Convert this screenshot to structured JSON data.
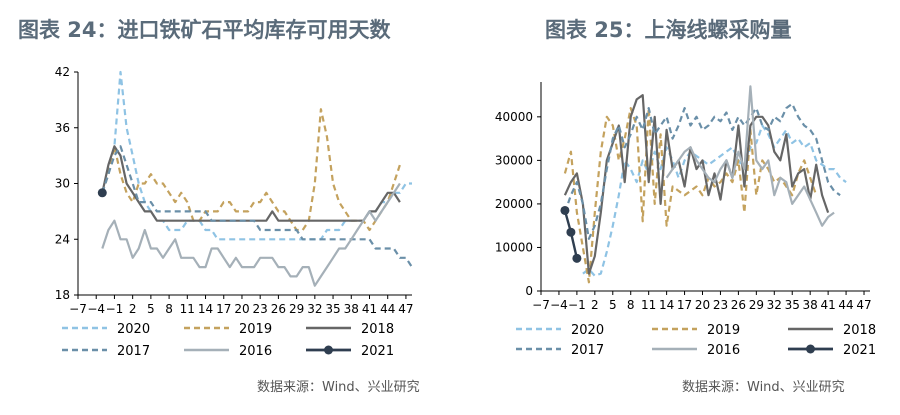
{
  "source_label": "数据来源：Wind、兴业研究",
  "chart_data": [
    {
      "type": "line",
      "title": "图表 24：进口铁矿石平均库存可用天数",
      "xlabel": "",
      "ylabel": "",
      "x_ticks": [
        -7,
        -4,
        -1,
        2,
        5,
        8,
        11,
        14,
        17,
        20,
        23,
        26,
        29,
        32,
        35,
        38,
        41,
        44,
        47
      ],
      "x": [
        -7,
        -6,
        -5,
        -4,
        -3,
        -2,
        -1,
        0,
        1,
        2,
        3,
        4,
        5,
        6,
        7,
        8,
        9,
        10,
        11,
        12,
        13,
        14,
        15,
        16,
        17,
        18,
        19,
        20,
        21,
        22,
        23,
        24,
        25,
        26,
        27,
        28,
        29,
        30,
        31,
        32,
        33,
        34,
        35,
        36,
        37,
        38,
        39,
        40,
        41,
        42,
        43,
        44,
        45,
        46,
        47,
        48
      ],
      "ylim": [
        18,
        42
      ],
      "y_ticks": [
        18,
        24,
        30,
        36,
        42
      ],
      "legend_position": "bottom",
      "series": [
        {
          "name": "2020",
          "color": "#8fc3e4",
          "style": "dash",
          "values": [
            null,
            null,
            null,
            null,
            29,
            31,
            34,
            42,
            36,
            33,
            30,
            28,
            27,
            26,
            26,
            25,
            25,
            25,
            26,
            26,
            26,
            25,
            25,
            24,
            24,
            24,
            24,
            24,
            24,
            24,
            24,
            24,
            24,
            24,
            24,
            24,
            24,
            24,
            24,
            24,
            24,
            25,
            25,
            25,
            26,
            26,
            26,
            26,
            27,
            27,
            28,
            28,
            29,
            29,
            30,
            30
          ]
        },
        {
          "name": "2019",
          "color": "#c4a25e",
          "style": "dash",
          "values": [
            null,
            null,
            null,
            null,
            29,
            31,
            34,
            31,
            29,
            28,
            30,
            30,
            31,
            30,
            30,
            29,
            28,
            29,
            28,
            26,
            26,
            27,
            27,
            27,
            28,
            28,
            27,
            27,
            27,
            28,
            28,
            29,
            28,
            27,
            27,
            26,
            25,
            25,
            26,
            30,
            38,
            35,
            30,
            28,
            27,
            26,
            26,
            26,
            25,
            26,
            27,
            28,
            30,
            32,
            null,
            null
          ]
        },
        {
          "name": "2018",
          "color": "#666666",
          "style": "solid",
          "values": [
            null,
            null,
            null,
            null,
            29,
            32,
            34,
            33,
            30,
            29,
            28,
            27,
            27,
            26,
            26,
            26,
            26,
            26,
            26,
            26,
            26,
            26,
            26,
            26,
            26,
            26,
            26,
            26,
            26,
            26,
            26,
            26,
            27,
            26,
            26,
            26,
            26,
            26,
            26,
            26,
            26,
            26,
            26,
            26,
            26,
            26,
            26,
            26,
            27,
            27,
            28,
            29,
            29,
            28,
            null,
            null
          ]
        },
        {
          "name": "2017",
          "color": "#6a8fa8",
          "style": "dash",
          "values": [
            null,
            null,
            null,
            null,
            29,
            31,
            33,
            34,
            32,
            30,
            28,
            28,
            28,
            27,
            27,
            27,
            27,
            27,
            27,
            27,
            27,
            27,
            26,
            26,
            26,
            26,
            26,
            26,
            26,
            26,
            25,
            25,
            25,
            25,
            25,
            25,
            25,
            24,
            24,
            24,
            24,
            24,
            24,
            24,
            24,
            24,
            24,
            24,
            24,
            23,
            23,
            23,
            23,
            22,
            22,
            21
          ]
        },
        {
          "name": "2016",
          "color": "#a5b0b8",
          "style": "solid",
          "values": [
            null,
            null,
            null,
            null,
            23,
            25,
            26,
            24,
            24,
            22,
            23,
            25,
            23,
            23,
            22,
            23,
            24,
            22,
            22,
            22,
            21,
            21,
            23,
            23,
            22,
            21,
            22,
            21,
            21,
            21,
            22,
            22,
            22,
            21,
            21,
            20,
            20,
            21,
            21,
            19,
            20,
            21,
            22,
            23,
            23,
            24,
            25,
            26,
            27,
            26,
            27,
            28,
            29,
            30,
            null,
            null
          ]
        },
        {
          "name": "2021",
          "color": "#2f3e50",
          "style": "solid-marker",
          "values": [
            null,
            null,
            null,
            null,
            29,
            null,
            null,
            null,
            null,
            null,
            null,
            null,
            null,
            null,
            null,
            null,
            null,
            null,
            null,
            null,
            null,
            null,
            null,
            null,
            null,
            null,
            null,
            null,
            null,
            null,
            null,
            null,
            null,
            null,
            null,
            null,
            null,
            null,
            null,
            null,
            null,
            null,
            null,
            null,
            null,
            null,
            null,
            null,
            null,
            null,
            null,
            null,
            null,
            null,
            null,
            null
          ]
        }
      ]
    },
    {
      "type": "line",
      "title": "图表 25：上海线螺采购量",
      "xlabel": "",
      "ylabel": "",
      "x_ticks": [
        -7,
        -4,
        -1,
        2,
        5,
        8,
        11,
        14,
        17,
        20,
        23,
        26,
        29,
        32,
        35,
        38,
        41,
        44,
        47
      ],
      "x": [
        -7,
        -6,
        -5,
        -4,
        -3,
        -2,
        -1,
        0,
        1,
        2,
        3,
        4,
        5,
        6,
        7,
        8,
        9,
        10,
        11,
        12,
        13,
        14,
        15,
        16,
        17,
        18,
        19,
        20,
        21,
        22,
        23,
        24,
        25,
        26,
        27,
        28,
        29,
        30,
        31,
        32,
        33,
        34,
        35,
        36,
        37,
        38,
        39,
        40,
        41,
        42,
        43,
        44,
        45,
        46,
        47,
        48
      ],
      "ylim": [
        0,
        48000
      ],
      "y_ticks": [
        0,
        10000,
        20000,
        30000,
        40000
      ],
      "legend_position": "bottom",
      "series": [
        {
          "name": "2020",
          "color": "#8fc3e4",
          "style": "dash",
          "values": [
            null,
            null,
            null,
            null,
            null,
            null,
            null,
            4000,
            5000,
            3500,
            4000,
            9000,
            15000,
            22000,
            30000,
            28000,
            25000,
            30000,
            27000,
            32000,
            28000,
            33000,
            30000,
            26000,
            30000,
            32000,
            31000,
            30000,
            29000,
            30000,
            31000,
            32000,
            33000,
            30000,
            28000,
            33000,
            34000,
            38000,
            36000,
            33000,
            35000,
            37000,
            34000,
            35000,
            33000,
            34000,
            30000,
            29000,
            28000,
            28000,
            26000,
            25000,
            null,
            null,
            null,
            null
          ]
        },
        {
          "name": "2019",
          "color": "#c4a25e",
          "style": "dash",
          "values": [
            null,
            null,
            null,
            null,
            27000,
            32000,
            18000,
            10000,
            2000,
            18000,
            32000,
            40000,
            38000,
            30000,
            35000,
            42000,
            38000,
            16000,
            42000,
            20000,
            36000,
            15000,
            24000,
            23000,
            22000,
            23000,
            24000,
            22000,
            26000,
            24000,
            25000,
            27000,
            25000,
            30000,
            18000,
            37000,
            22000,
            30000,
            28000,
            25000,
            26000,
            24000,
            22000,
            27000,
            30000,
            26000,
            22000,
            null,
            null,
            null,
            null,
            null,
            null,
            null,
            null,
            null
          ]
        },
        {
          "name": "2018",
          "color": "#666666",
          "style": "solid",
          "values": [
            null,
            null,
            null,
            null,
            22000,
            25000,
            27000,
            20000,
            4000,
            8000,
            18000,
            30000,
            34000,
            38000,
            25000,
            40000,
            44000,
            45000,
            25000,
            40000,
            20000,
            37000,
            28000,
            30000,
            24000,
            33000,
            28000,
            30000,
            22000,
            27000,
            21000,
            30000,
            26000,
            38000,
            24000,
            38000,
            40000,
            40000,
            38000,
            32000,
            30000,
            36000,
            24000,
            27000,
            28000,
            21000,
            29000,
            22000,
            18000,
            null,
            null,
            null,
            null,
            null,
            null,
            null
          ]
        },
        {
          "name": "2017",
          "color": "#6a8fa8",
          "style": "dash",
          "values": [
            null,
            null,
            null,
            null,
            18000,
            22000,
            25000,
            20000,
            12000,
            15000,
            20000,
            28000,
            35000,
            38000,
            33000,
            36000,
            40000,
            37000,
            42000,
            36000,
            38000,
            40000,
            35000,
            38000,
            42000,
            38000,
            40000,
            37000,
            38000,
            40000,
            39000,
            41000,
            37000,
            40000,
            38000,
            40000,
            42000,
            38000,
            37000,
            40000,
            39000,
            42000,
            43000,
            40000,
            38000,
            37000,
            35000,
            30000,
            25000,
            23000,
            22000,
            null,
            null,
            null,
            null,
            null
          ]
        },
        {
          "name": "2016",
          "color": "#a5b0b8",
          "style": "solid",
          "values": [
            null,
            null,
            null,
            null,
            null,
            null,
            null,
            null,
            null,
            null,
            null,
            null,
            null,
            null,
            null,
            null,
            null,
            null,
            null,
            null,
            null,
            26000,
            28000,
            30000,
            32000,
            33000,
            30000,
            28000,
            26000,
            25000,
            28000,
            30000,
            26000,
            32000,
            28000,
            47000,
            30000,
            28000,
            30000,
            22000,
            26000,
            25000,
            20000,
            22000,
            24000,
            21000,
            18000,
            15000,
            17000,
            18000,
            null,
            null,
            null,
            null,
            null,
            null
          ]
        },
        {
          "name": "2021",
          "color": "#2f3e50",
          "style": "solid-marker",
          "values": [
            null,
            null,
            null,
            null,
            18500,
            13500,
            7500,
            null,
            null,
            null,
            null,
            null,
            null,
            null,
            null,
            null,
            null,
            null,
            null,
            null,
            null,
            null,
            null,
            null,
            null,
            null,
            null,
            null,
            null,
            null,
            null,
            null,
            null,
            null,
            null,
            null,
            null,
            null,
            null,
            null,
            null,
            null,
            null,
            null,
            null,
            null,
            null,
            null,
            null,
            null,
            null,
            null,
            null,
            null,
            null,
            null
          ]
        }
      ]
    }
  ]
}
